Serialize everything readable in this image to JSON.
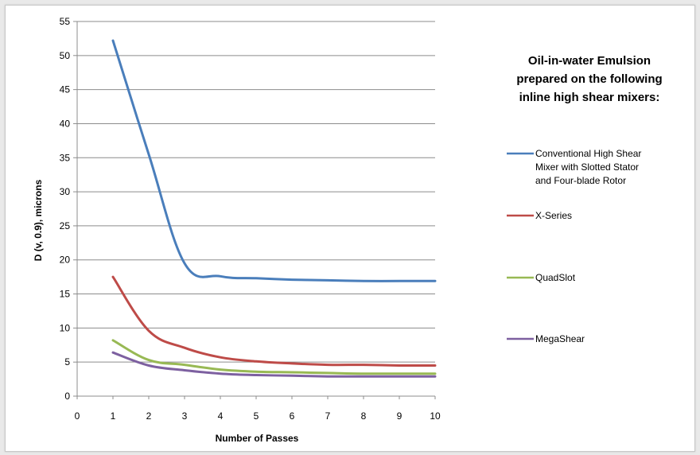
{
  "chart_data": {
    "type": "line",
    "xlabel": "Number of Passes",
    "ylabel": "D (v, 0.9), microns",
    "xlim": [
      0,
      10
    ],
    "ylim": [
      0,
      55
    ],
    "xticks": [
      "0",
      "1",
      "2",
      "3",
      "4",
      "5",
      "6",
      "7",
      "8",
      "9",
      "10"
    ],
    "yticks": [
      "0",
      "5",
      "10",
      "15",
      "20",
      "25",
      "30",
      "35",
      "40",
      "45",
      "50",
      "55"
    ],
    "grid": "horizontal",
    "legend_position": "right",
    "legend_title": [
      "Oil-in-water Emulsion",
      "prepared on the following",
      "inline high shear mixers:"
    ],
    "x": [
      1,
      2,
      3,
      4,
      5,
      6,
      7,
      8,
      9,
      10
    ],
    "series": [
      {
        "name": "Conventional High Shear Mixer with Slotted Stator and Four-blade Rotor",
        "legend_lines": [
          "Conventional High Shear",
          "Mixer with Slotted Stator",
          "and Four-blade Rotor"
        ],
        "color": "#4a7ebb",
        "values": [
          52.2,
          35.5,
          19.5,
          17.6,
          17.3,
          17.1,
          17.0,
          16.9,
          16.9,
          16.9
        ]
      },
      {
        "name": "X-Series",
        "legend_lines": [
          "X-Series"
        ],
        "color": "#be4b48",
        "values": [
          17.5,
          9.6,
          7.1,
          5.7,
          5.1,
          4.8,
          4.6,
          4.6,
          4.5,
          4.5
        ]
      },
      {
        "name": "QuadSlot",
        "legend_lines": [
          "QuadSlot"
        ],
        "color": "#98b954",
        "values": [
          8.2,
          5.3,
          4.6,
          3.9,
          3.6,
          3.5,
          3.4,
          3.3,
          3.3,
          3.3
        ]
      },
      {
        "name": "MegaShear",
        "legend_lines": [
          "MegaShear"
        ],
        "color": "#7d60a0",
        "values": [
          6.4,
          4.5,
          3.8,
          3.3,
          3.1,
          3.0,
          2.9,
          2.9,
          2.9,
          2.9
        ]
      }
    ]
  }
}
